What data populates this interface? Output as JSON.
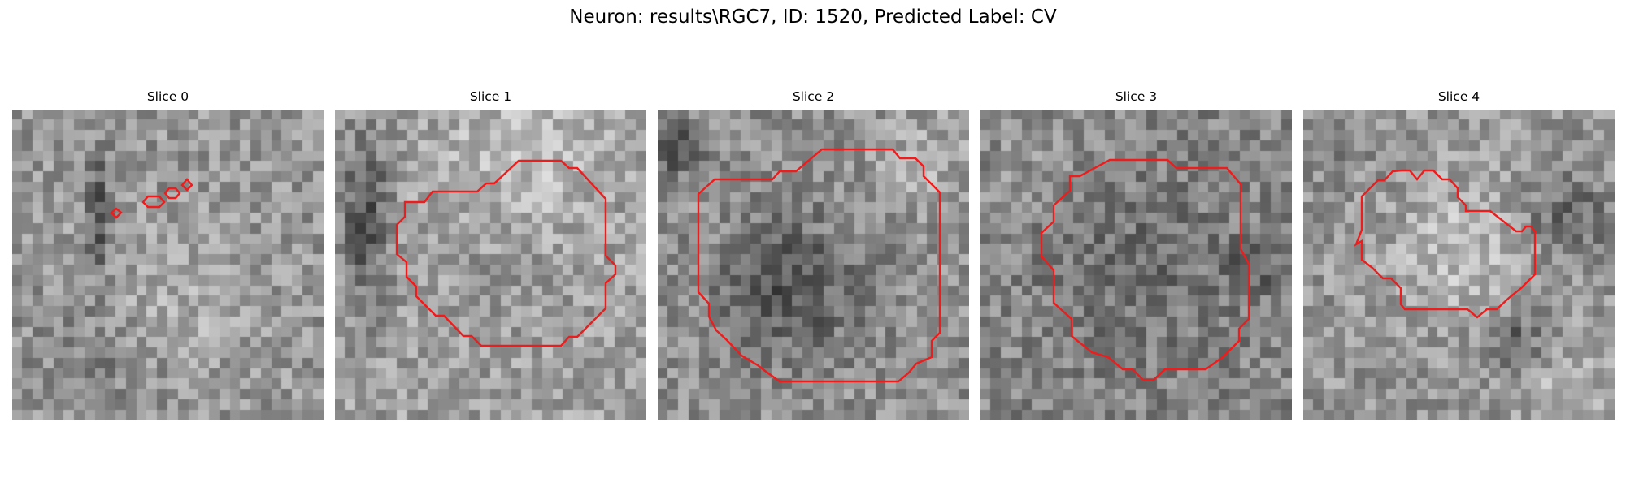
{
  "figure": {
    "title": "Neuron: results\\RGC7, ID: 1520, Predicted Label: CV",
    "contour_color": "#ee1c1c",
    "colormap": "gray"
  },
  "slices": [
    {
      "label": "Slice 0"
    },
    {
      "label": "Slice 1"
    },
    {
      "label": "Slice 2"
    },
    {
      "label": "Slice 3"
    },
    {
      "label": "Slice 4"
    }
  ]
}
